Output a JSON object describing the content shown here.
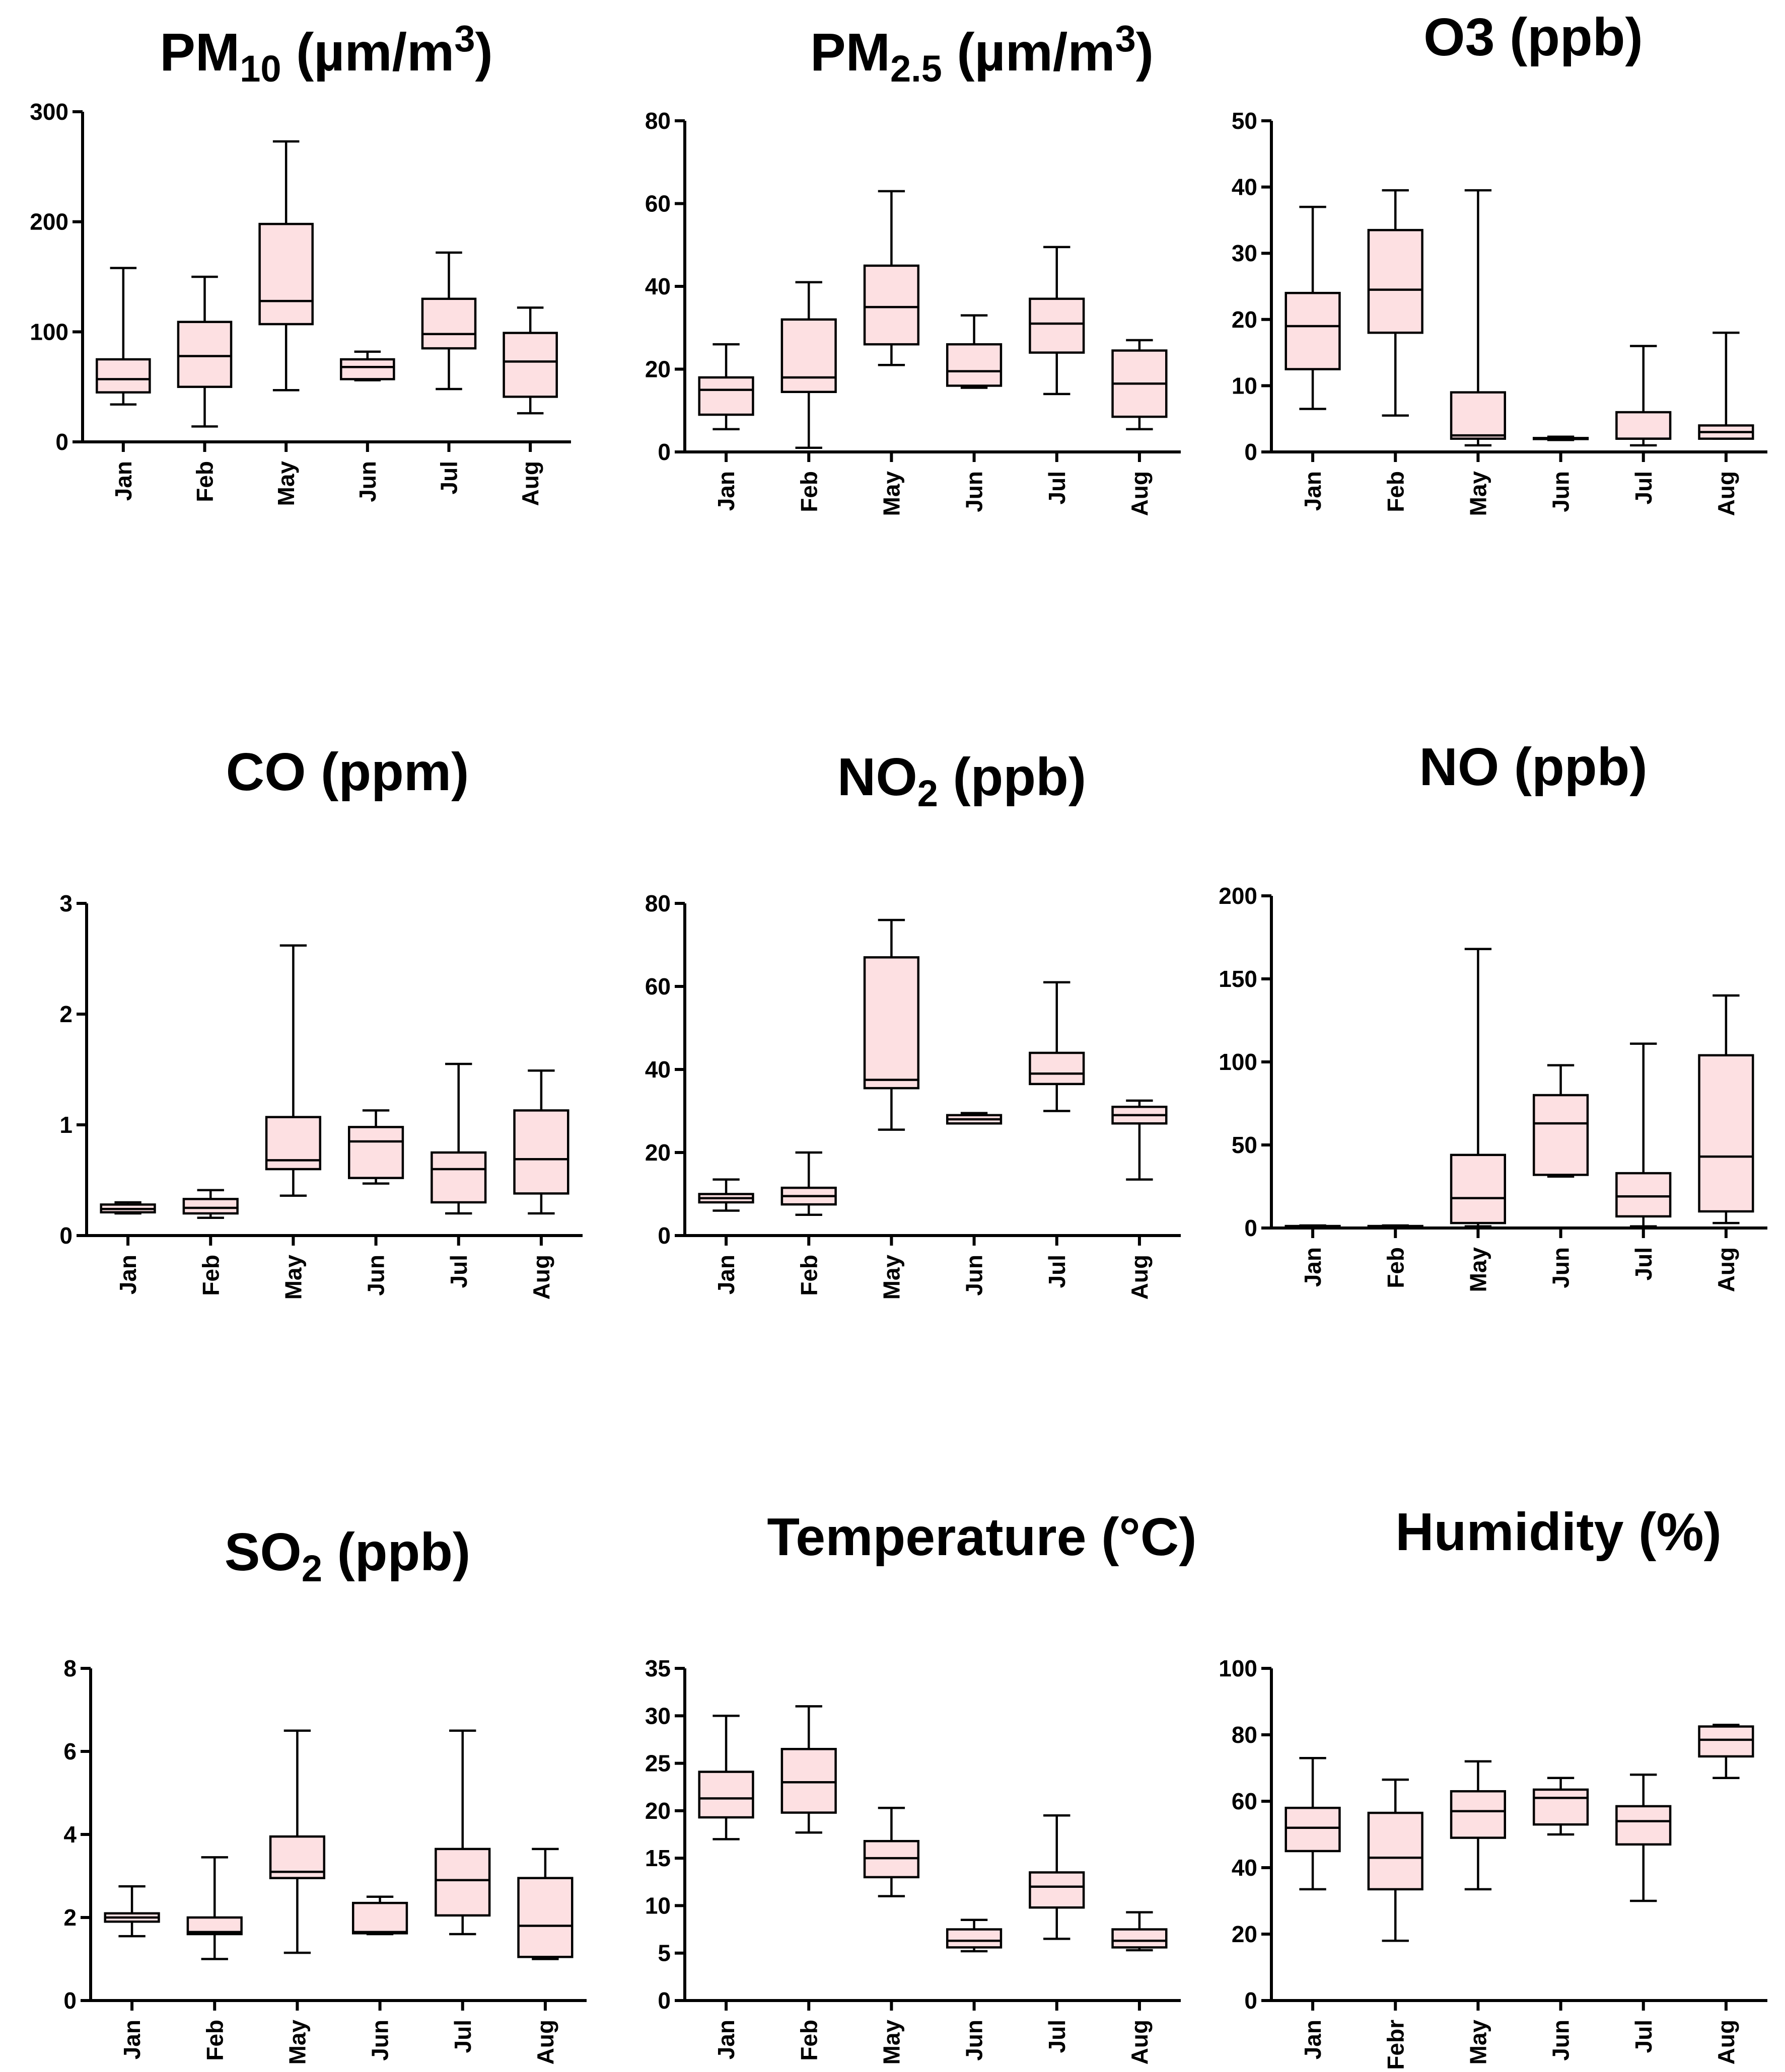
{
  "chart_data": [
    {
      "type": "box",
      "title": "PM10 (µm/m3)",
      "title_parts": [
        {
          "text": "PM",
          "style": "normal"
        },
        {
          "text": "10",
          "style": "sub"
        },
        {
          "text": " (µm/m",
          "style": "normal"
        },
        {
          "text": "3",
          "style": "sup"
        },
        {
          "text": ")",
          "style": "normal"
        }
      ],
      "categories": [
        "Jan",
        "Feb",
        "May",
        "Jun",
        "Jul",
        "Aug"
      ],
      "ylim": [
        0,
        300
      ],
      "yticks": [
        0,
        100,
        200,
        300
      ],
      "boxes": [
        {
          "min": 34,
          "q1": 45,
          "median": 57,
          "q3": 75,
          "max": 158
        },
        {
          "min": 14,
          "q1": 50,
          "median": 78,
          "q3": 109,
          "max": 150
        },
        {
          "min": 47,
          "q1": 107,
          "median": 128,
          "q3": 198,
          "max": 273
        },
        {
          "min": 56,
          "q1": 57,
          "median": 68,
          "q3": 75,
          "max": 82
        },
        {
          "min": 48,
          "q1": 85,
          "median": 98,
          "q3": 130,
          "max": 172
        },
        {
          "min": 26,
          "q1": 41,
          "median": 73,
          "q3": 99,
          "max": 122
        }
      ]
    },
    {
      "type": "box",
      "title": "PM2.5 (µm/m3)",
      "title_parts": [
        {
          "text": "PM",
          "style": "normal"
        },
        {
          "text": "2.5",
          "style": "sub"
        },
        {
          "text": " (µm/m",
          "style": "normal"
        },
        {
          "text": "3",
          "style": "sup"
        },
        {
          "text": ")",
          "style": "normal"
        }
      ],
      "categories": [
        "Jan",
        "Feb",
        "May",
        "Jun",
        "Jul",
        "Aug"
      ],
      "ylim": [
        0,
        80
      ],
      "yticks": [
        0,
        20,
        40,
        60,
        80
      ],
      "boxes": [
        {
          "min": 5.5,
          "q1": 9,
          "median": 15,
          "q3": 18,
          "max": 26
        },
        {
          "min": 1,
          "q1": 14.5,
          "median": 18,
          "q3": 32,
          "max": 41
        },
        {
          "min": 21,
          "q1": 26,
          "median": 35,
          "q3": 45,
          "max": 63
        },
        {
          "min": 15.5,
          "q1": 16,
          "median": 19.5,
          "q3": 26,
          "max": 33
        },
        {
          "min": 14,
          "q1": 24,
          "median": 31,
          "q3": 37,
          "max": 49.5
        },
        {
          "min": 5.5,
          "q1": 8.5,
          "median": 16.5,
          "q3": 24.5,
          "max": 27
        }
      ]
    },
    {
      "type": "box",
      "title": "O3 (ppb)",
      "title_parts": [
        {
          "text": "O3 (ppb)",
          "style": "normal"
        }
      ],
      "categories": [
        "Jan",
        "Feb",
        "May",
        "Jun",
        "Jul",
        "Aug"
      ],
      "ylim": [
        0,
        50
      ],
      "yticks": [
        0,
        10,
        20,
        30,
        40,
        50
      ],
      "boxes": [
        {
          "min": 6.5,
          "q1": 12.5,
          "median": 19,
          "q3": 24,
          "max": 37
        },
        {
          "min": 5.5,
          "q1": 18,
          "median": 24.5,
          "q3": 33.5,
          "max": 39.5
        },
        {
          "min": 1,
          "q1": 2,
          "median": 2.5,
          "q3": 9,
          "max": 39.5
        },
        {
          "min": 1.8,
          "q1": 2,
          "median": 2,
          "q3": 2.1,
          "max": 2.3
        },
        {
          "min": 1,
          "q1": 2,
          "median": 2,
          "q3": 6,
          "max": 16
        },
        {
          "min": 2,
          "q1": 2,
          "median": 3,
          "q3": 4,
          "max": 18
        }
      ]
    },
    {
      "type": "box",
      "title": "CO (ppm)",
      "title_parts": [
        {
          "text": "CO (ppm)",
          "style": "normal"
        }
      ],
      "categories": [
        "Jan",
        "Feb",
        "May",
        "Jun",
        "Jul",
        "Aug"
      ],
      "ylim": [
        0,
        3
      ],
      "yticks": [
        0,
        1,
        2,
        3
      ],
      "boxes": [
        {
          "min": 0.2,
          "q1": 0.21,
          "median": 0.24,
          "q3": 0.28,
          "max": 0.3
        },
        {
          "min": 0.16,
          "q1": 0.2,
          "median": 0.25,
          "q3": 0.33,
          "max": 0.41
        },
        {
          "min": 0.36,
          "q1": 0.6,
          "median": 0.68,
          "q3": 1.07,
          "max": 2.62
        },
        {
          "min": 0.47,
          "q1": 0.52,
          "median": 0.85,
          "q3": 0.98,
          "max": 1.13
        },
        {
          "min": 0.2,
          "q1": 0.3,
          "median": 0.6,
          "q3": 0.75,
          "max": 1.55
        },
        {
          "min": 0.2,
          "q1": 0.38,
          "median": 0.69,
          "q3": 1.13,
          "max": 1.49
        }
      ]
    },
    {
      "type": "box",
      "title": "NO2 (ppb)",
      "title_parts": [
        {
          "text": "NO",
          "style": "normal"
        },
        {
          "text": "2",
          "style": "sub"
        },
        {
          "text": " (ppb)",
          "style": "normal"
        }
      ],
      "categories": [
        "Jan",
        "Feb",
        "May",
        "Jun",
        "Jul",
        "Aug"
      ],
      "ylim": [
        0,
        80
      ],
      "yticks": [
        0,
        20,
        40,
        60,
        80
      ],
      "boxes": [
        {
          "min": 6,
          "q1": 8,
          "median": 9,
          "q3": 10,
          "max": 13.5
        },
        {
          "min": 5,
          "q1": 7.5,
          "median": 9.5,
          "q3": 11.5,
          "max": 20
        },
        {
          "min": 25.5,
          "q1": 35.5,
          "median": 37.5,
          "q3": 67,
          "max": 76
        },
        {
          "min": 27,
          "q1": 27,
          "median": 28,
          "q3": 29,
          "max": 29.5
        },
        {
          "min": 30,
          "q1": 36.5,
          "median": 39,
          "q3": 44,
          "max": 61
        },
        {
          "min": 13.5,
          "q1": 27,
          "median": 29,
          "q3": 31,
          "max": 32.5
        }
      ]
    },
    {
      "type": "box",
      "title": "NO (ppb)",
      "title_parts": [
        {
          "text": "NO (ppb)",
          "style": "normal"
        }
      ],
      "categories": [
        "Jan",
        "Feb",
        "May",
        "Jun",
        "Jul",
        "Aug"
      ],
      "ylim": [
        0,
        200
      ],
      "yticks": [
        0,
        50,
        100,
        150,
        200
      ],
      "boxes": [
        {
          "min": 0.5,
          "q1": 0.8,
          "median": 1,
          "q3": 1.2,
          "max": 1.5
        },
        {
          "min": 0.5,
          "q1": 0.8,
          "median": 1,
          "q3": 1.2,
          "max": 1.5
        },
        {
          "min": 1,
          "q1": 3,
          "median": 18,
          "q3": 44,
          "max": 168
        },
        {
          "min": 31,
          "q1": 32,
          "median": 63,
          "q3": 80,
          "max": 98
        },
        {
          "min": 1,
          "q1": 7,
          "median": 19,
          "q3": 33,
          "max": 111
        },
        {
          "min": 3,
          "q1": 10,
          "median": 43,
          "q3": 104,
          "max": 140
        }
      ]
    },
    {
      "type": "box",
      "title": "SO2 (ppb)",
      "title_parts": [
        {
          "text": "SO",
          "style": "normal"
        },
        {
          "text": "2",
          "style": "sub"
        },
        {
          "text": " (ppb)",
          "style": "normal"
        }
      ],
      "categories": [
        "Jan",
        "Feb",
        "May",
        "Jun",
        "Jul",
        "Aug"
      ],
      "ylim": [
        0,
        8
      ],
      "yticks": [
        0,
        2,
        4,
        6,
        8
      ],
      "boxes": [
        {
          "min": 1.55,
          "q1": 1.9,
          "median": 2,
          "q3": 2.1,
          "max": 2.75
        },
        {
          "min": 1,
          "q1": 1.6,
          "median": 1.65,
          "q3": 2,
          "max": 3.45
        },
        {
          "min": 1.15,
          "q1": 2.95,
          "median": 3.1,
          "q3": 3.95,
          "max": 6.5
        },
        {
          "min": 1.6,
          "q1": 1.62,
          "median": 1.65,
          "q3": 2.35,
          "max": 2.5
        },
        {
          "min": 1.6,
          "q1": 2.05,
          "median": 2.9,
          "q3": 3.65,
          "max": 6.5
        },
        {
          "min": 1,
          "q1": 1.05,
          "median": 1.8,
          "q3": 2.95,
          "max": 3.65
        }
      ]
    },
    {
      "type": "box",
      "title": "Temperature (°C)",
      "title_parts": [
        {
          "text": "Temperature (°C)",
          "style": "normal"
        }
      ],
      "categories": [
        "Jan",
        "Feb",
        "May",
        "Jun",
        "Jul",
        "Aug"
      ],
      "ylim": [
        0,
        35
      ],
      "yticks": [
        0,
        5,
        10,
        15,
        20,
        25,
        30,
        35
      ],
      "boxes": [
        {
          "min": 17,
          "q1": 19.3,
          "median": 21.3,
          "q3": 24.1,
          "max": 30
        },
        {
          "min": 17.7,
          "q1": 19.8,
          "median": 23,
          "q3": 26.5,
          "max": 31
        },
        {
          "min": 11,
          "q1": 13,
          "median": 15,
          "q3": 16.8,
          "max": 20.3
        },
        {
          "min": 5.2,
          "q1": 5.6,
          "median": 6.3,
          "q3": 7.5,
          "max": 8.5
        },
        {
          "min": 6.5,
          "q1": 9.8,
          "median": 12,
          "q3": 13.5,
          "max": 19.5
        },
        {
          "min": 5.3,
          "q1": 5.6,
          "median": 6.3,
          "q3": 7.5,
          "max": 9.3
        }
      ]
    },
    {
      "type": "box",
      "title": "Humidity (%)",
      "title_parts": [
        {
          "text": "Humidity (%)",
          "style": "normal"
        }
      ],
      "categories": [
        "Jan",
        "Febr",
        "May",
        "Jun",
        "Jul",
        "Aug"
      ],
      "ylim": [
        0,
        100
      ],
      "yticks": [
        0,
        20,
        40,
        60,
        80,
        100
      ],
      "boxes": [
        {
          "min": 33.5,
          "q1": 45,
          "median": 52,
          "q3": 58,
          "max": 73
        },
        {
          "min": 18,
          "q1": 33.5,
          "median": 43,
          "q3": 56.5,
          "max": 66.5
        },
        {
          "min": 33.5,
          "q1": 49,
          "median": 57,
          "q3": 63,
          "max": 72
        },
        {
          "min": 50,
          "q1": 53,
          "median": 61,
          "q3": 63.5,
          "max": 67
        },
        {
          "min": 30,
          "q1": 47,
          "median": 54,
          "q3": 58.5,
          "max": 68
        },
        {
          "min": 67,
          "q1": 73.5,
          "median": 78.5,
          "q3": 82.5,
          "max": 83
        }
      ]
    }
  ]
}
